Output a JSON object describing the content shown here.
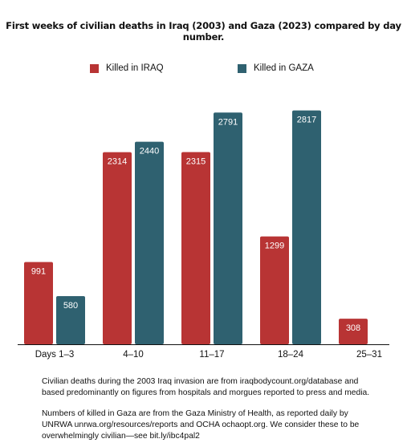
{
  "chart_data": {
    "type": "bar",
    "title": "First weeks of civilian deaths in Iraq (2003) and Gaza (2023) compared by day number.",
    "categories": [
      "Days 1–3",
      "4–10",
      "11–17",
      "18–24",
      "25–31"
    ],
    "series": [
      {
        "name": "Killed in IRAQ",
        "color": "#b83434",
        "values": [
          991,
          2314,
          2315,
          1299,
          308
        ]
      },
      {
        "name": "Killed in GAZA",
        "color": "#2f6170",
        "values": [
          580,
          2440,
          2791,
          2817,
          null
        ]
      }
    ],
    "ylim": [
      0,
      2900
    ],
    "grid": false,
    "legend_position": "top"
  },
  "notes": [
    "Civilian deaths during the 2003 Iraq invasion are from iraqbodycount.org/database and based predominantly on figures from hospitals and morgues reported to press and media.",
    "Numbers of killed in Gaza are from the Gaza Ministry of Health, as reported daily by UNRWA unrwa.org/resources/reports  and OCHA ochaopt.org. We consider these to be overwhelmingly civilian—see bit.ly/ibc4pal2"
  ]
}
